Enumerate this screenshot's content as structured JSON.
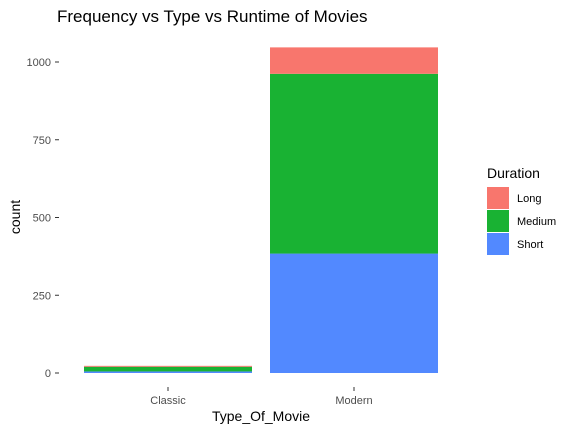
{
  "chart_data": {
    "type": "bar",
    "stacked": true,
    "title": "Frequency vs Type vs Runtime of Movies",
    "xlabel": "Type_Of_Movie",
    "ylabel": "count",
    "categories": [
      "Classic",
      "Modern"
    ],
    "series": [
      {
        "name": "Long",
        "values": [
          3,
          85
        ],
        "color": "#F8766D"
      },
      {
        "name": "Medium",
        "values": [
          15,
          578
        ],
        "color": "#19B233"
      },
      {
        "name": "Short",
        "values": [
          5,
          384
        ],
        "color": "#5289FF"
      }
    ],
    "stack_order_bottom_to_top": [
      "Short",
      "Medium",
      "Long"
    ],
    "ylim": [
      0,
      1050
    ],
    "yticks": [
      0,
      250,
      500,
      750,
      1000
    ],
    "grid": false,
    "legend": {
      "title": "Duration",
      "placement": "right"
    }
  }
}
